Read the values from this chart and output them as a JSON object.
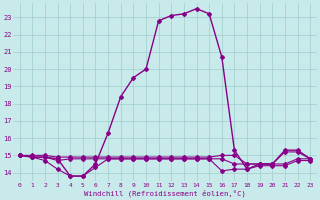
{
  "bg_color": "#c8eaea",
  "grid_color": "#a0cccc",
  "line_color": "#880088",
  "xlim": [
    -0.5,
    23.5
  ],
  "ylim": [
    13.5,
    23.8
  ],
  "yticks": [
    14,
    15,
    16,
    17,
    18,
    19,
    20,
    21,
    22,
    23
  ],
  "xticks": [
    0,
    1,
    2,
    3,
    4,
    5,
    6,
    7,
    8,
    9,
    10,
    11,
    12,
    13,
    14,
    15,
    16,
    17,
    18,
    19,
    20,
    21,
    22,
    23
  ],
  "xlabel": "Windchill (Refroidissement éolien,°C)",
  "lines": [
    {
      "x": [
        0,
        1,
        2,
        3,
        4,
        5,
        6,
        7,
        8,
        9,
        10,
        11,
        12,
        13,
        14,
        15,
        16,
        17,
        18,
        19,
        20,
        21,
        22,
        23
      ],
      "y": [
        15.0,
        14.9,
        14.9,
        14.8,
        13.8,
        13.8,
        14.5,
        16.3,
        18.4,
        19.5,
        20.0,
        22.8,
        23.1,
        23.2,
        23.5,
        23.2,
        20.7,
        15.3,
        14.2,
        14.5,
        14.5,
        15.3,
        15.3,
        14.8
      ],
      "lw": 1.0,
      "ls": "-"
    },
    {
      "x": [
        0,
        1,
        2,
        3,
        4,
        5,
        6,
        7,
        8,
        9,
        10,
        11,
        12,
        13,
        14,
        15,
        16,
        17,
        18,
        19,
        20,
        21,
        22,
        23
      ],
      "y": [
        15.0,
        14.9,
        14.9,
        14.7,
        14.8,
        14.8,
        14.8,
        14.8,
        14.8,
        14.8,
        14.8,
        14.8,
        14.8,
        14.8,
        14.8,
        14.8,
        14.8,
        14.5,
        14.5,
        14.5,
        14.5,
        14.5,
        14.8,
        14.8
      ],
      "lw": 0.8,
      "ls": "-"
    },
    {
      "x": [
        0,
        1,
        2,
        3,
        4,
        5,
        6,
        7,
        8,
        9,
        10,
        11,
        12,
        13,
        14,
        15,
        16,
        17,
        18,
        19,
        20,
        21,
        22,
        23
      ],
      "y": [
        15.0,
        14.9,
        14.7,
        14.2,
        13.8,
        13.8,
        14.3,
        14.8,
        14.8,
        14.8,
        14.8,
        14.8,
        14.8,
        14.8,
        14.8,
        14.8,
        14.1,
        14.2,
        14.2,
        14.4,
        14.4,
        14.4,
        14.7,
        14.7
      ],
      "lw": 0.8,
      "ls": "-"
    },
    {
      "x": [
        0,
        1,
        2,
        3,
        4,
        5,
        6,
        7,
        8,
        9,
        10,
        11,
        12,
        13,
        14,
        15,
        16,
        17,
        18,
        19,
        20,
        21,
        22,
        23
      ],
      "y": [
        15.0,
        15.0,
        15.0,
        14.9,
        14.9,
        14.9,
        14.9,
        14.9,
        14.9,
        14.9,
        14.9,
        14.9,
        14.9,
        14.9,
        14.9,
        14.9,
        15.0,
        15.0,
        14.5,
        14.5,
        14.5,
        15.2,
        15.2,
        14.8
      ],
      "lw": 0.8,
      "ls": "-"
    }
  ]
}
